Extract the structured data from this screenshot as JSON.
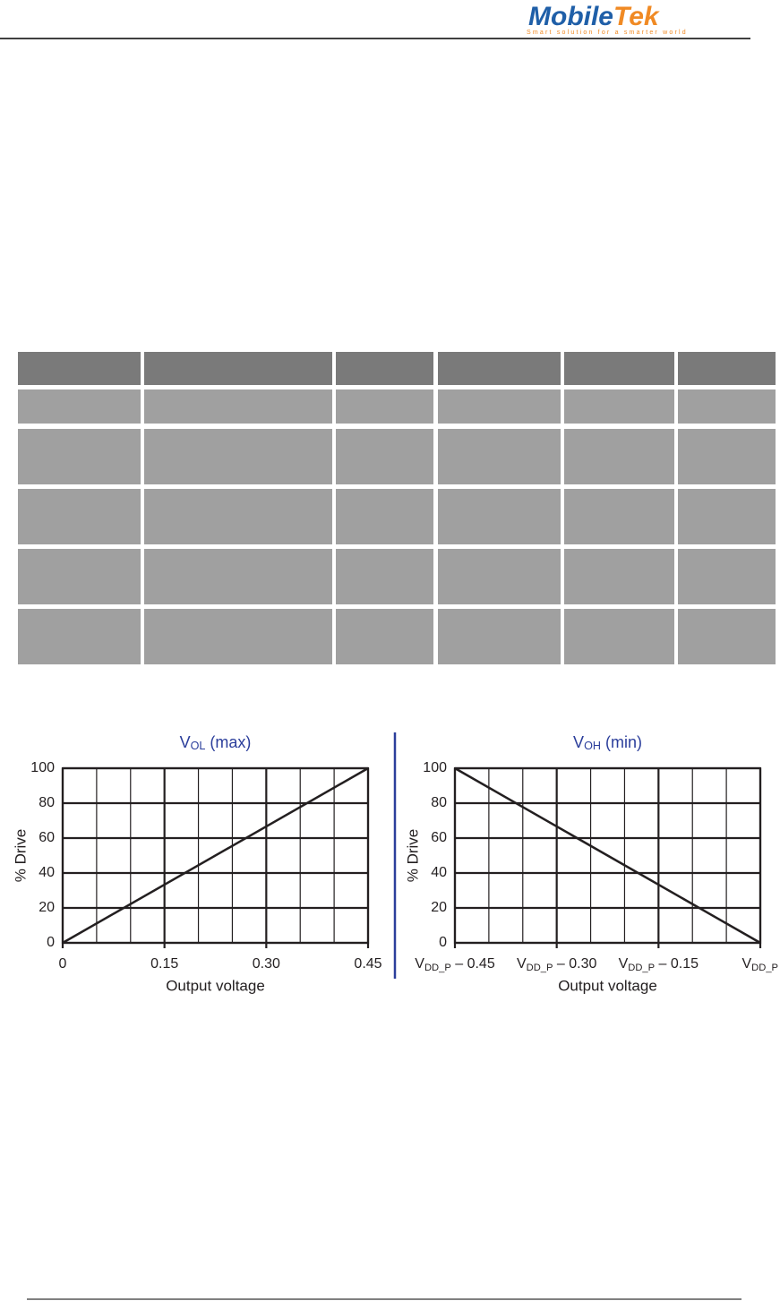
{
  "header": {
    "logo": [
      "Mobile",
      "Tek"
    ],
    "tagline": "Smart solution for a smarter world"
  },
  "chart_data": [
    {
      "type": "line",
      "title": {
        "main": "V",
        "sub": "OL",
        "rest": " (max)"
      },
      "x_label": "Output voltage",
      "y_label": "% Drive",
      "x": [
        0,
        0.45
      ],
      "values": [
        0,
        100
      ],
      "color": "#231f20",
      "xlim": [
        0,
        0.45
      ],
      "xticks": [
        0,
        0.15,
        {
          "value": 0.3,
          "label": "0.30"
        },
        0.45
      ],
      "ylim": [
        0,
        100
      ],
      "yticks": [
        0,
        20,
        40,
        60,
        80,
        100
      ],
      "grid": true
    },
    {
      "type": "line",
      "title": {
        "main": "V",
        "sub": "OH",
        "rest": " (min)"
      },
      "x_label": "Output voltage",
      "y_label": "% Drive",
      "x": [
        -0.45,
        0
      ],
      "values": [
        100,
        0
      ],
      "color": "#231f20",
      "xlim": [
        -0.45,
        0
      ],
      "xticks": [
        {
          "value": -0.45,
          "label": {
            "main": "V",
            "sub": "DD_P",
            "rest": " – 0.45"
          }
        },
        {
          "value": -0.3,
          "label": {
            "main": "V",
            "sub": "DD_P",
            "rest": " – 0.30"
          }
        },
        {
          "value": -0.15,
          "label": {
            "main": "V",
            "sub": "DD_P",
            "rest": " – 0.15"
          }
        },
        {
          "value": 0,
          "label": {
            "main": "V",
            "sub": "DD_P"
          }
        }
      ],
      "ylim": [
        0,
        100
      ],
      "yticks": [
        0,
        20,
        40,
        60,
        80,
        100
      ],
      "grid": true
    }
  ]
}
